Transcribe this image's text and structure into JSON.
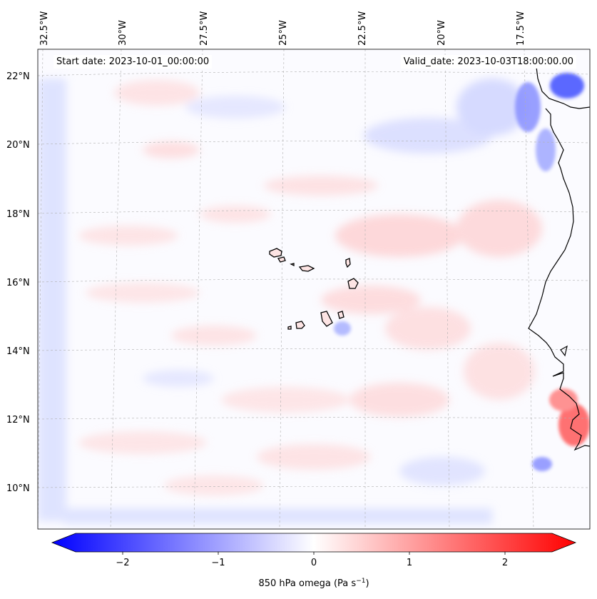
{
  "map": {
    "start_date_label": "Start date: 2023-10-01_00:00:00",
    "valid_date_label": "Valid_date: 2023-10-03T18:00:00.00",
    "lon_ticks": [
      "32.5°W",
      "30°W",
      "27.5°W",
      "25°W",
      "22.5°W",
      "20°W",
      "17.5°W"
    ],
    "lat_ticks": [
      "22°N",
      "20°N",
      "18°N",
      "16°N",
      "14°N",
      "12°N",
      "10°N"
    ],
    "field": "850 hPa omega",
    "units": "Pa s",
    "units_exponent": "−1",
    "colormap": "bwr",
    "colors": {
      "negative": "#0000ff",
      "zero": "#ffffff",
      "positive": "#ff0000",
      "coastline": "#000000",
      "grid": "#b0b0b0"
    }
  },
  "colorbar": {
    "tick_labels": [
      "−2",
      "−1",
      "0",
      "1",
      "2"
    ],
    "tick_values": [
      -2,
      -1,
      0,
      1,
      2
    ],
    "range": [
      -2.5,
      2.5
    ],
    "extend": "both"
  }
}
